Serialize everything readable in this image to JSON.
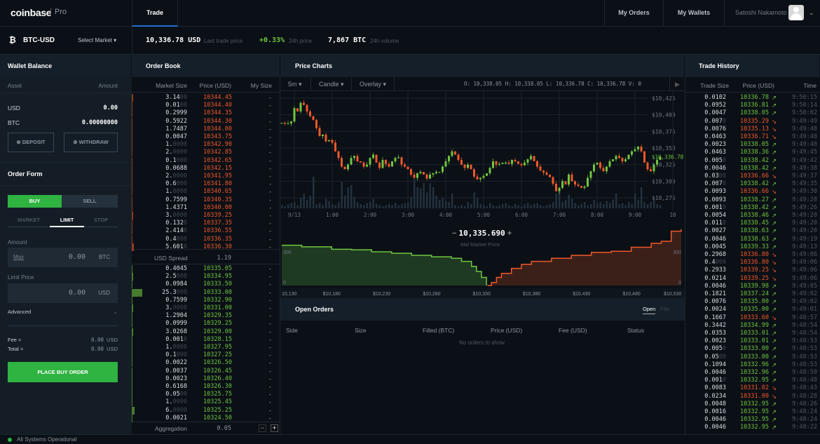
{
  "nav": {
    "logo": "coinbase",
    "logo_suffix": "Pro",
    "tab_trade": "Trade",
    "my_orders": "My Orders",
    "my_wallets": "My Wallets",
    "user_name": "Satoshi Nakamoto"
  },
  "ticker": {
    "pair": "BTC-USD",
    "select_market": "Select Market",
    "last_price": "10,336.78 USD",
    "last_price_label": "Last trade price",
    "change": "+0.33%",
    "change_label": "24h price",
    "volume": "7,867 BTC",
    "volume_label": "24h volume"
  },
  "colors": {
    "green": "#70c540",
    "red": "#f0582a",
    "buy": "#2fb341",
    "accent": "#1f6fd1"
  },
  "wallet": {
    "title": "Wallet Balance",
    "col_asset": "Asset",
    "col_amount": "Amount",
    "rows": [
      {
        "asset": "USD",
        "amount": "0.00"
      },
      {
        "asset": "BTC",
        "amount": "0.00000000"
      }
    ],
    "deposit": "DEPOSIT",
    "withdraw": "WITHDRAW"
  },
  "order_form": {
    "title": "Order Form",
    "buy": "BUY",
    "sell": "SELL",
    "tabs": [
      "MARKET",
      "LIMIT",
      "STOP"
    ],
    "active_tab": "LIMIT",
    "amount_label": "Amount",
    "max": "Max",
    "amount_value": "0.00",
    "amount_unit": "BTC",
    "limit_label": "Limit Price",
    "limit_value": "0.00",
    "limit_unit": "USD",
    "advanced": "Advanced",
    "fee_label": "Fee ≈",
    "fee_value": "0.00",
    "fee_unit": "USD",
    "total_label": "Total ≈",
    "total_value": "0.00",
    "total_unit": "USD",
    "place": "PLACE BUY ORDER"
  },
  "order_book": {
    "title": "Order Book",
    "cols": [
      "Market Size",
      "Price (USD)",
      "My Size"
    ],
    "asks": [
      [
        "3.14",
        "10344.45"
      ],
      [
        "0.01",
        "10344.40"
      ],
      [
        "0.2999",
        "10344.35"
      ],
      [
        "0.5922",
        "10344.30"
      ],
      [
        "1.7487",
        "10344.00"
      ],
      [
        "0.0047",
        "10343.75"
      ],
      [
        "1.",
        "10342.90"
      ],
      [
        "2.",
        "10342.85"
      ],
      [
        "0.1",
        "10342.65"
      ],
      [
        "0.0688",
        "10342.15"
      ],
      [
        "2.",
        "10341.95"
      ],
      [
        "0.6",
        "10341.80"
      ],
      [
        "1.",
        "10340.65"
      ],
      [
        "0.7599",
        "10340.35"
      ],
      [
        "1.4371",
        "10340.00"
      ],
      [
        "3.",
        "10339.25"
      ],
      [
        "0.132",
        "10337.35"
      ],
      [
        "2.414",
        "10336.55"
      ],
      [
        "0.4",
        "10336.35"
      ],
      [
        "5.601",
        "10336.30"
      ]
    ],
    "bids": [
      [
        "0.4045",
        "10335.05"
      ],
      [
        "2.5",
        "10334.95"
      ],
      [
        "0.0984",
        "10333.50"
      ],
      [
        "25.3",
        "10333.00"
      ],
      [
        "0.7599",
        "10332.90"
      ],
      [
        "3.",
        "10331.00"
      ],
      [
        "1.2904",
        "10329.35"
      ],
      [
        "0.0999",
        "10329.25"
      ],
      [
        "3.0268",
        "10329.00"
      ],
      [
        "0.001",
        "10328.15"
      ],
      [
        "1.",
        "10327.95"
      ],
      [
        "0.1",
        "10327.25"
      ],
      [
        "0.0022",
        "10326.50"
      ],
      [
        "0.0037",
        "10326.45"
      ],
      [
        "0.0023",
        "10326.40"
      ],
      [
        "0.6168",
        "10326.30"
      ],
      [
        "0.05",
        "10325.75"
      ],
      [
        "1.",
        "10325.45"
      ],
      [
        "6.",
        "10325.25"
      ],
      [
        "0.0021",
        "10324.50"
      ]
    ],
    "my_size": "-",
    "spread_label": "USD Spread",
    "spread": "1.19",
    "aggregation_label": "Aggregation",
    "aggregation": "0.05"
  },
  "charts": {
    "title": "Price Charts",
    "interval": "5m",
    "type": "Candle",
    "overlay": "Overlay",
    "ohlcv": "O: 10,338.05  H: 10,338.05  L: 10,336.78  C: 10,336.78  V:    0",
    "mid_price": "10,335.690",
    "mid_label": "Mid Market Price"
  },
  "chart_data": [
    {
      "type": "candlestick",
      "interval": "5m",
      "x_ticks": [
        "9/13",
        "1:00",
        "2:00",
        "3:00",
        "4:00",
        "5:00",
        "6:00",
        "7:00",
        "8:00",
        "9:00",
        "10"
      ],
      "y_ticks": [
        "$10,425",
        "$10,400",
        "$10,375",
        "$10,350",
        "$10,325",
        "$10,300",
        "$10,275"
      ],
      "ylim": [
        10270,
        10430
      ],
      "last_price_label": "$10,336.78",
      "grid": true,
      "closes": [
        10388,
        10387,
        10387,
        10390,
        10410,
        10405,
        10418,
        10415,
        10405,
        10398,
        10392,
        10380,
        10368,
        10370,
        10360,
        10362,
        10358,
        10345,
        10335,
        10322,
        10318,
        10325,
        10335,
        10338,
        10330,
        10328,
        10322,
        10325,
        10335,
        10340,
        10328,
        10320,
        10332,
        10326,
        10322,
        10330,
        10335,
        10336,
        10325,
        10322,
        10318,
        10310,
        10305,
        10312,
        10314,
        10310,
        10304,
        10310,
        10312,
        10314,
        10314,
        10322,
        10330,
        10338,
        10345,
        10340,
        10332,
        10325,
        10320,
        10325,
        10318,
        10307,
        10303,
        10305,
        10308,
        10312,
        10320,
        10330,
        10325,
        10326,
        10328,
        10328,
        10326,
        10332,
        10330,
        10326,
        10324,
        10328,
        10333,
        10338,
        10330,
        10322,
        10316,
        10313,
        10310,
        10306,
        10296,
        10285,
        10290,
        10300,
        10295,
        10310,
        10300,
        10295,
        10293,
        10290,
        10292,
        10305,
        10315,
        10325,
        10328,
        10320,
        10315,
        10322,
        10330,
        10333,
        10338,
        10335,
        10330,
        10333,
        10340,
        10345,
        10348,
        10352,
        10345,
        10328,
        10318,
        10315,
        10325,
        10332,
        10336.78
      ],
      "volumes": [
        3,
        2,
        4,
        5,
        6,
        3,
        10,
        14,
        8,
        12,
        30,
        4,
        5,
        3,
        9,
        7,
        4,
        3,
        6,
        25,
        12,
        20,
        22,
        11,
        6,
        4,
        3,
        5,
        6,
        9,
        4,
        3,
        2,
        3,
        4,
        3,
        5,
        3,
        4,
        5,
        6,
        11,
        28,
        20,
        19,
        24,
        15,
        24,
        20,
        12,
        8,
        10,
        7,
        6,
        14,
        3,
        2,
        3,
        2,
        6,
        4,
        15,
        10,
        4,
        3,
        2,
        5,
        3,
        2,
        3,
        4,
        5,
        3,
        2,
        4,
        3,
        2,
        4,
        5,
        3,
        4,
        5,
        3,
        2,
        3,
        4,
        6,
        14,
        20,
        6,
        8,
        13,
        9,
        5,
        3,
        4,
        6,
        3,
        4,
        8,
        5,
        6,
        4,
        7,
        5,
        8,
        14,
        4,
        5,
        3,
        6,
        4,
        14,
        8,
        20,
        6,
        4,
        6,
        8,
        4,
        3
      ]
    },
    {
      "type": "depth",
      "x_ticks": [
        "10,130",
        "$10,180",
        "$10,230",
        "$10,280",
        "$10,330",
        "$10,380",
        "$10,430",
        "$10,480",
        "$10,530"
      ],
      "xlim": [
        10130,
        10530
      ],
      "y_ticks": [
        "300",
        "0"
      ],
      "ylim": [
        0,
        700
      ],
      "bids": [
        [
          10130,
          400
        ],
        [
          10150,
          385
        ],
        [
          10180,
          360
        ],
        [
          10200,
          355
        ],
        [
          10220,
          335
        ],
        [
          10240,
          320
        ],
        [
          10260,
          300
        ],
        [
          10280,
          285
        ],
        [
          10300,
          270
        ],
        [
          10310,
          240
        ],
        [
          10320,
          190
        ],
        [
          10325,
          140
        ],
        [
          10330,
          80
        ],
        [
          10335,
          0
        ]
      ],
      "asks": [
        [
          10336,
          0
        ],
        [
          10340,
          30
        ],
        [
          10345,
          80
        ],
        [
          10350,
          120
        ],
        [
          10360,
          170
        ],
        [
          10370,
          210
        ],
        [
          10380,
          240
        ],
        [
          10400,
          270
        ],
        [
          10420,
          300
        ],
        [
          10440,
          330
        ],
        [
          10460,
          340
        ],
        [
          10480,
          380
        ],
        [
          10500,
          420
        ],
        [
          10510,
          440
        ],
        [
          10520,
          540
        ],
        [
          10530,
          560
        ]
      ]
    }
  ],
  "open_orders": {
    "title": "Open Orders",
    "tab_open": "Open",
    "tab_fills": "Fills",
    "cols": [
      "Side",
      "Size",
      "Filled (BTC)",
      "Price (USD)",
      "Fee (USD)",
      "Status"
    ],
    "empty": "No orders to show"
  },
  "trade_history": {
    "title": "Trade History",
    "cols": [
      "Trade Size",
      "Price (USD)",
      "Time"
    ],
    "trades": [
      [
        "0.0102",
        "10336.78",
        "up",
        "9:50:15"
      ],
      [
        "0.0952",
        "10336.81",
        "up",
        "9:50:14"
      ],
      [
        "0.0047",
        "10338.05",
        "up",
        "9:50:02"
      ],
      [
        "0.007",
        "10335.29",
        "down",
        "9:49:49"
      ],
      [
        "0.0076",
        "10335.13",
        "down",
        "9:49:48"
      ],
      [
        "0.0463",
        "10336.71",
        "down",
        "9:49:48"
      ],
      [
        "0.0023",
        "10338.05",
        "up",
        "9:49:48"
      ],
      [
        "0.0463",
        "10338.36",
        "up",
        "9:49:45"
      ],
      [
        "0.005",
        "10338.42",
        "up",
        "9:49:42"
      ],
      [
        "0.0046",
        "10338.42",
        "up",
        "9:49:38"
      ],
      [
        "0.03",
        "10336.66",
        "down",
        "9:49:37"
      ],
      [
        "0.007",
        "10338.42",
        "up",
        "9:49:35"
      ],
      [
        "0.0093",
        "10336.66",
        "down",
        "9:49:30"
      ],
      [
        "0.0093",
        "10338.27",
        "up",
        "9:49:28"
      ],
      [
        "0.001",
        "10338.42",
        "up",
        "9:49:26"
      ],
      [
        "0.0054",
        "10338.46",
        "up",
        "9:49:20"
      ],
      [
        "0.011",
        "10338.45",
        "up",
        "9:49:20"
      ],
      [
        "0.0027",
        "10338.63",
        "up",
        "9:49:20"
      ],
      [
        "0.0046",
        "10338.63",
        "up",
        "9:49:19"
      ],
      [
        "0.0045",
        "10339.33",
        "up",
        "9:49:13"
      ],
      [
        "0.2968",
        "10336.80",
        "down",
        "9:49:06"
      ],
      [
        "0.4",
        "10336.80",
        "down",
        "9:49:06"
      ],
      [
        "0.2933",
        "10339.25",
        "down",
        "9:49:06"
      ],
      [
        "0.0214",
        "10339.25",
        "down",
        "9:49:06"
      ],
      [
        "0.0046",
        "10339.98",
        "up",
        "9:49:05"
      ],
      [
        "0.1821",
        "10337.24",
        "up",
        "9:49:02"
      ],
      [
        "0.0076",
        "10335.00",
        "up",
        "9:49:02"
      ],
      [
        "0.0024",
        "10335.00",
        "up",
        "9:49:01"
      ],
      [
        "0.1667",
        "10333.60",
        "down",
        "9:48:57"
      ],
      [
        "0.3442",
        "10334.99",
        "up",
        "9:48:54"
      ],
      [
        "0.0353",
        "10333.01",
        "up",
        "9:48:54"
      ],
      [
        "0.0023",
        "10333.01",
        "up",
        "9:48:53"
      ],
      [
        "0.005",
        "10333.00",
        "up",
        "9:48:53"
      ],
      [
        "0.05",
        "10333.00",
        "up",
        "9:48:53"
      ],
      [
        "0.1094",
        "10332.96",
        "up",
        "9:48:53"
      ],
      [
        "0.0046",
        "10332.96",
        "up",
        "9:48:50"
      ],
      [
        "0.001",
        "10332.95",
        "up",
        "9:48:48"
      ],
      [
        "0.0083",
        "10331.02",
        "down",
        "9:48:43"
      ],
      [
        "0.0234",
        "10331.00",
        "down",
        "9:48:28"
      ],
      [
        "0.0048",
        "10332.95",
        "up",
        "9:48:26"
      ],
      [
        "0.0016",
        "10332.95",
        "up",
        "9:48:24"
      ],
      [
        "0.0046",
        "10332.95",
        "up",
        "9:48:24"
      ],
      [
        "0.0046",
        "10332.95",
        "up",
        "9:48:22"
      ]
    ]
  },
  "status": {
    "text": "All Systems Operational"
  }
}
